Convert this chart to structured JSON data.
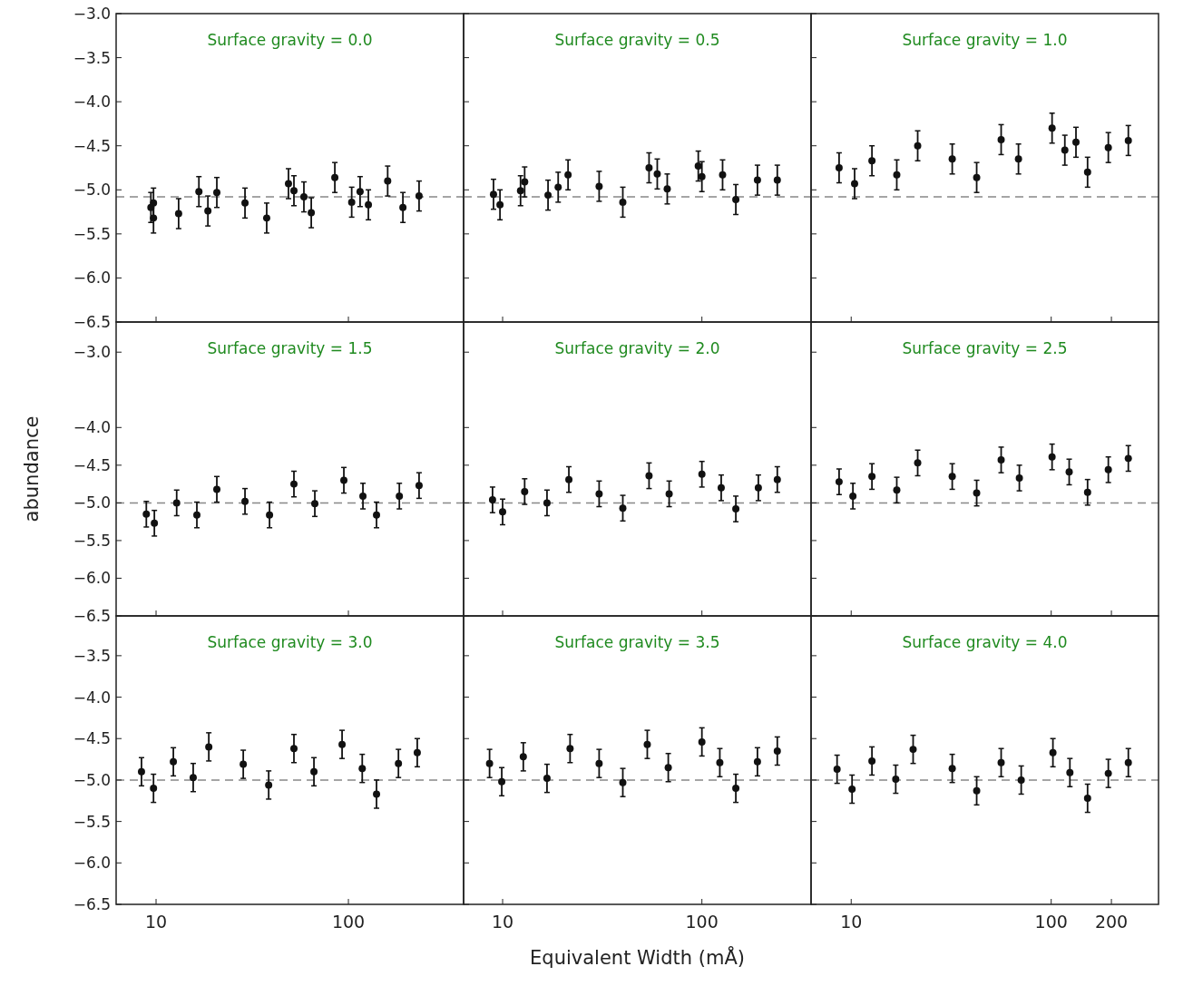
{
  "chart_data": [
    {
      "type": "scatter",
      "title": "Surface gravity = 0.0",
      "marker": "circle",
      "color": "#111111",
      "tick_labels": "y",
      "log": "x",
      "xlim": [
        6.2,
        397
      ],
      "xticks": [
        10,
        100
      ],
      "ylim": [
        -6.5,
        -3.0
      ],
      "yticks": [
        {
          "value": -3.0,
          "label": "−3.0"
        },
        {
          "value": -3.5,
          "label": "−3.5"
        },
        {
          "value": -4.0,
          "label": "−4.0"
        },
        {
          "value": -4.5,
          "label": "−4.5"
        },
        {
          "value": -5.0,
          "label": "−5.0"
        },
        {
          "value": -5.5,
          "label": "−5.5"
        },
        {
          "value": -6.0,
          "label": "−6.0"
        },
        {
          "value": -6.5,
          "label": "−6.5"
        }
      ],
      "x": [
        9.4,
        9.7,
        9.7,
        13.1,
        16.7,
        18.6,
        20.7,
        29,
        37.6,
        48.8,
        52.1,
        58.7,
        64.1,
        85,
        104,
        115,
        127,
        160,
        192,
        233
      ],
      "values": [
        -5.2,
        -5.15,
        -5.32,
        -5.27,
        -5.02,
        -5.24,
        -5.03,
        -5.15,
        -5.32,
        -4.93,
        -5.01,
        -5.08,
        -5.26,
        -4.86,
        -5.14,
        -5.02,
        -5.17,
        -4.9,
        -5.2,
        -5.07
      ],
      "errors": [
        0.17,
        0.17,
        0.17,
        0.17,
        0.17,
        0.17,
        0.17,
        0.17,
        0.17,
        0.17,
        0.17,
        0.17,
        0.17,
        0.17,
        0.17,
        0.17,
        0.17,
        0.17,
        0.17,
        0.17
      ],
      "ref_lines": [
        {
          "axis": "y",
          "value": -5.08,
          "color": "#888888",
          "line_style": "dashed"
        }
      ]
    },
    {
      "type": "scatter",
      "title": "Surface gravity = 0.5",
      "marker": "circle",
      "color": "#111111",
      "tick_labels": false,
      "log": "x",
      "xlim": [
        6.37,
        353
      ],
      "xticks": [
        10,
        100
      ],
      "ylim": [
        -6.5,
        -3.0
      ],
      "yticks": [
        -3.0,
        -3.5,
        -4.0,
        -4.5,
        -5.0,
        -5.5,
        -6.0,
        -6.5
      ],
      "x": [
        9.0,
        9.7,
        12.3,
        12.9,
        16.9,
        19,
        21.3,
        30.5,
        40.1,
        54.3,
        59.7,
        67,
        95.9,
        100,
        127,
        148,
        190,
        239
      ],
      "values": [
        -5.05,
        -5.17,
        -5.01,
        -4.91,
        -5.06,
        -4.97,
        -4.83,
        -4.96,
        -5.14,
        -4.75,
        -4.82,
        -4.99,
        -4.73,
        -4.85,
        -4.83,
        -5.11,
        -4.89,
        -4.89
      ],
      "errors": [
        0.17,
        0.17,
        0.17,
        0.17,
        0.17,
        0.17,
        0.17,
        0.17,
        0.17,
        0.17,
        0.17,
        0.17,
        0.17,
        0.17,
        0.17,
        0.17,
        0.17,
        0.17
      ],
      "ref_lines": [
        {
          "axis": "y",
          "value": -5.08,
          "color": "#888888",
          "line_style": "dashed"
        }
      ]
    },
    {
      "type": "scatter",
      "title": "Surface gravity = 1.0",
      "marker": "circle",
      "color": "#111111",
      "tick_labels": false,
      "log": "x",
      "xlim": [
        6.3,
        344
      ],
      "xticks": [
        10,
        100,
        200
      ],
      "ylim": [
        -6.5,
        -3.0
      ],
      "yticks": [
        -3.0,
        -3.5,
        -4.0,
        -4.5,
        -5.0,
        -5.5,
        -6.0,
        -6.5
      ],
      "x": [
        8.7,
        10.4,
        12.7,
        16.9,
        21.5,
        32,
        42.4,
        56.2,
        68.6,
        101,
        117,
        133,
        152,
        193,
        243
      ],
      "values": [
        -4.75,
        -4.93,
        -4.67,
        -4.83,
        -4.5,
        -4.65,
        -4.86,
        -4.43,
        -4.65,
        -4.3,
        -4.55,
        -4.46,
        -4.8,
        -4.52,
        -4.44
      ],
      "errors": [
        0.17,
        0.17,
        0.17,
        0.17,
        0.17,
        0.17,
        0.17,
        0.17,
        0.17,
        0.17,
        0.17,
        0.17,
        0.17,
        0.17,
        0.17
      ],
      "ref_lines": [
        {
          "axis": "y",
          "value": -5.08,
          "color": "#888888",
          "line_style": "dashed"
        }
      ]
    },
    {
      "type": "scatter",
      "title": "Surface gravity = 1.5",
      "ylabel": "abundance",
      "marker": "circle",
      "color": "#111111",
      "tick_labels": "y",
      "log": "x",
      "xlim": [
        6.2,
        397
      ],
      "xticks": [
        10,
        100
      ],
      "ylim": [
        -6.5,
        -2.6
      ],
      "yticks": [
        {
          "value": -3.0,
          "label": "−3.0"
        },
        {
          "value": -4.0,
          "label": "−4.0"
        },
        {
          "value": -4.5,
          "label": "−4.5"
        },
        {
          "value": -5.0,
          "label": "−5.0"
        },
        {
          "value": -5.5,
          "label": "−5.5"
        },
        {
          "value": -6.0,
          "label": "−6.0"
        },
        {
          "value": -6.5,
          "label": "−6.5"
        }
      ],
      "x": [
        8.9,
        9.8,
        12.8,
        16.3,
        20.7,
        29,
        38.9,
        52.1,
        66.9,
        94.7,
        119,
        140,
        184,
        233
      ],
      "values": [
        -5.15,
        -5.27,
        -5.0,
        -5.16,
        -4.82,
        -4.98,
        -5.16,
        -4.75,
        -5.01,
        -4.7,
        -4.91,
        -5.16,
        -4.91,
        -4.77
      ],
      "errors": [
        0.17,
        0.17,
        0.17,
        0.17,
        0.17,
        0.17,
        0.17,
        0.17,
        0.17,
        0.17,
        0.17,
        0.17,
        0.17,
        0.17
      ],
      "ref_lines": [
        {
          "axis": "y",
          "value": -5.0,
          "color": "#888888",
          "line_style": "dashed"
        }
      ]
    },
    {
      "type": "scatter",
      "title": "Surface gravity = 2.0",
      "marker": "circle",
      "color": "#111111",
      "tick_labels": false,
      "log": "x",
      "xlim": [
        6.37,
        353
      ],
      "xticks": [
        10,
        100
      ],
      "ylim": [
        -6.5,
        -2.6
      ],
      "yticks": [
        -3.0,
        -4.0,
        -4.5,
        -5.0,
        -5.5,
        -6.0,
        -6.5
      ],
      "x": [
        8.9,
        10,
        12.9,
        16.7,
        21.5,
        30.5,
        40.1,
        54.3,
        68.5,
        100,
        125,
        148,
        192,
        239
      ],
      "values": [
        -4.96,
        -5.12,
        -4.85,
        -5.0,
        -4.69,
        -4.88,
        -5.07,
        -4.64,
        -4.88,
        -4.62,
        -4.8,
        -5.08,
        -4.8,
        -4.69
      ],
      "errors": [
        0.17,
        0.17,
        0.17,
        0.17,
        0.17,
        0.17,
        0.17,
        0.17,
        0.17,
        0.17,
        0.17,
        0.17,
        0.17,
        0.17
      ],
      "ref_lines": [
        {
          "axis": "y",
          "value": -5.0,
          "color": "#888888",
          "line_style": "dashed"
        }
      ]
    },
    {
      "type": "scatter",
      "title": "Surface gravity = 2.5",
      "marker": "circle",
      "color": "#111111",
      "tick_labels": false,
      "log": "x",
      "xlim": [
        6.3,
        344
      ],
      "xticks": [
        10,
        100,
        200
      ],
      "ylim": [
        -6.5,
        -2.6
      ],
      "yticks": [
        -3.0,
        -4.0,
        -4.5,
        -5.0,
        -5.5,
        -6.0,
        -6.5
      ],
      "x": [
        8.7,
        10.2,
        12.7,
        16.9,
        21.5,
        32,
        42.4,
        56.2,
        69.3,
        101,
        123,
        152,
        193,
        243
      ],
      "values": [
        -4.72,
        -4.91,
        -4.65,
        -4.83,
        -4.47,
        -4.65,
        -4.87,
        -4.43,
        -4.67,
        -4.39,
        -4.59,
        -4.86,
        -4.56,
        -4.41
      ],
      "errors": [
        0.17,
        0.17,
        0.17,
        0.17,
        0.17,
        0.17,
        0.17,
        0.17,
        0.17,
        0.17,
        0.17,
        0.17,
        0.17,
        0.17
      ],
      "ref_lines": [
        {
          "axis": "y",
          "value": -5.0,
          "color": "#888888",
          "line_style": "dashed"
        }
      ]
    },
    {
      "type": "scatter",
      "title": "Surface gravity = 3.0",
      "marker": "circle",
      "color": "#111111",
      "log": "x",
      "xlim": [
        6.2,
        397
      ],
      "xticks": [
        10,
        100
      ],
      "ylim": [
        -6.5,
        -3.02
      ],
      "yticks": [
        {
          "value": -3.5,
          "label": "−3.5"
        },
        {
          "value": -4.0,
          "label": "−4.0"
        },
        {
          "value": -4.5,
          "label": "−4.5"
        },
        {
          "value": -5.0,
          "label": "−5.0"
        },
        {
          "value": -5.5,
          "label": "−5.5"
        },
        {
          "value": -6.0,
          "label": "−6.0"
        },
        {
          "value": -6.5,
          "label": "−6.5"
        }
      ],
      "x": [
        8.4,
        9.7,
        12.3,
        15.6,
        18.8,
        28.4,
        38.5,
        52.1,
        66.2,
        92.7,
        118,
        140,
        182,
        228
      ],
      "values": [
        -4.9,
        -5.1,
        -4.78,
        -4.97,
        -4.6,
        -4.81,
        -5.06,
        -4.62,
        -4.9,
        -4.57,
        -4.86,
        -5.17,
        -4.8,
        -4.67
      ],
      "errors": [
        0.17,
        0.17,
        0.17,
        0.17,
        0.17,
        0.17,
        0.17,
        0.17,
        0.17,
        0.17,
        0.17,
        0.17,
        0.17,
        0.17
      ],
      "ref_lines": [
        {
          "axis": "y",
          "value": -5.0,
          "color": "#888888",
          "line_style": "dashed"
        }
      ]
    },
    {
      "type": "scatter",
      "title": "Surface gravity = 3.5",
      "xlabel": "Equivalent Width (mÅ)",
      "marker": "circle",
      "color": "#111111",
      "tick_labels": "x",
      "log": "x",
      "xlim": [
        6.37,
        353
      ],
      "xticks": [
        10,
        100
      ],
      "ylim": [
        -6.5,
        -3.02
      ],
      "yticks": [
        -3.5,
        -4.0,
        -4.5,
        -5.0,
        -5.5,
        -6.0,
        -6.5
      ],
      "x": [
        8.6,
        9.9,
        12.7,
        16.7,
        21.8,
        30.5,
        40.1,
        53.2,
        67.8,
        100,
        123,
        148,
        190,
        239
      ],
      "values": [
        -4.8,
        -5.02,
        -4.72,
        -4.98,
        -4.62,
        -4.8,
        -5.03,
        -4.57,
        -4.85,
        -4.54,
        -4.79,
        -5.1,
        -4.78,
        -4.65
      ],
      "errors": [
        0.17,
        0.17,
        0.17,
        0.17,
        0.17,
        0.17,
        0.17,
        0.17,
        0.17,
        0.17,
        0.17,
        0.17,
        0.17,
        0.17
      ],
      "ref_lines": [
        {
          "axis": "y",
          "value": -5.0,
          "color": "#888888",
          "line_style": "dashed"
        }
      ]
    },
    {
      "type": "scatter",
      "title": "Surface gravity = 4.0",
      "marker": "circle",
      "color": "#111111",
      "tick_labels": "x",
      "log": "x",
      "xlim": [
        6.3,
        344
      ],
      "xticks": [
        10,
        100,
        200
      ],
      "ylim": [
        -6.5,
        -3.02
      ],
      "yticks": [
        -3.5,
        -4.0,
        -4.5,
        -5.0,
        -5.5,
        -6.0,
        -6.5
      ],
      "x": [
        8.5,
        10.1,
        12.7,
        16.7,
        20.4,
        32,
        42.4,
        56.2,
        70.8,
        102,
        124,
        152,
        193,
        243
      ],
      "values": [
        -4.87,
        -5.11,
        -4.77,
        -4.99,
        -4.63,
        -4.86,
        -5.13,
        -4.79,
        -5.0,
        -4.67,
        -4.91,
        -5.22,
        -4.92,
        -4.79
      ],
      "errors": [
        0.17,
        0.17,
        0.17,
        0.17,
        0.17,
        0.17,
        0.17,
        0.17,
        0.17,
        0.17,
        0.17,
        0.17,
        0.17,
        0.17
      ],
      "ref_lines": [
        {
          "axis": "y",
          "value": -5.0,
          "color": "#888888",
          "line_style": "dashed"
        }
      ]
    }
  ]
}
